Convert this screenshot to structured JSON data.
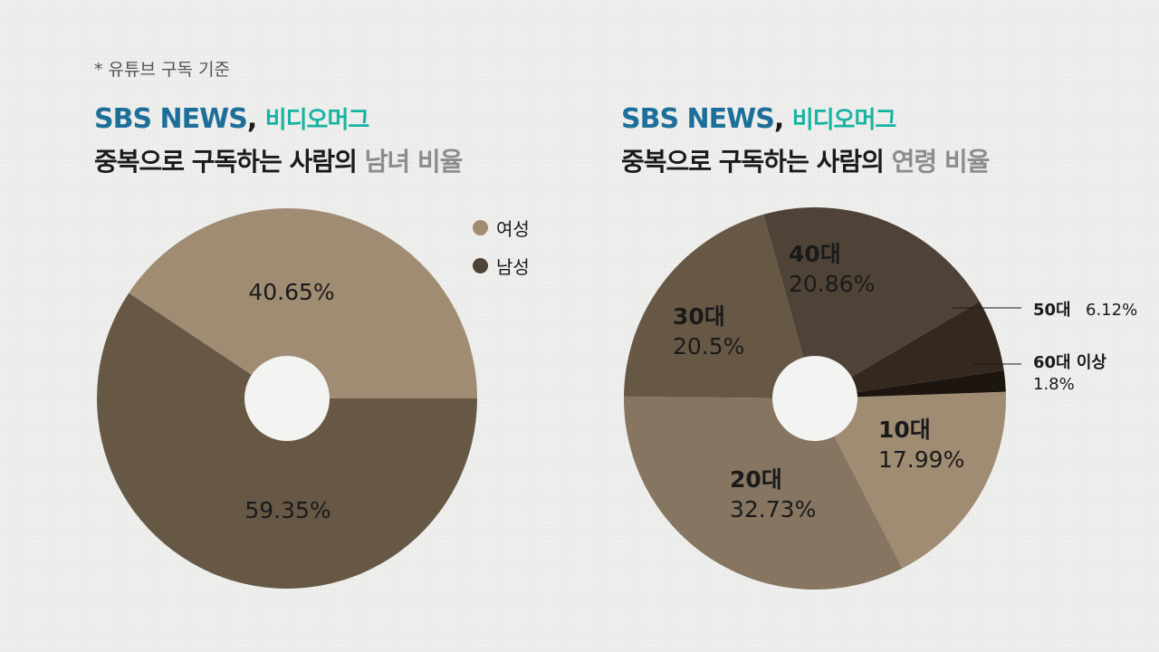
{
  "note": "* 유튜브 구독 기준",
  "left_header": {
    "brand_sbs": "SBS NEWS",
    "brand_comma": ",",
    "brand_vm": "비디오머그",
    "headline_main": "중복으로 구독하는 사람의 ",
    "headline_highlight": "남녀 비율"
  },
  "right_header": {
    "brand_sbs": "SBS NEWS",
    "brand_comma": ",",
    "brand_vm": "비디오머그",
    "headline_main": "중복으로 구독하는 사람의 ",
    "headline_highlight": "연령 비율"
  },
  "legend": [
    {
      "label": "여성",
      "color": "#a08c73"
    },
    {
      "label": "남성",
      "color": "#4e4336"
    }
  ],
  "colors": {
    "sbs_blue": "#1d6f99",
    "videomug_teal": "#17b3a3",
    "highlight_gray": "#8c8c8c",
    "center_hole": "#f3f3f2"
  },
  "chart_data": [
    {
      "type": "pie",
      "title": "중복으로 구독하는 사람의 남녀 비율",
      "categories": [
        "여성",
        "남성"
      ],
      "values": [
        40.65,
        59.35
      ],
      "labels": [
        "40.65%",
        "59.35%"
      ],
      "colors": [
        "#a08c73",
        "#675846"
      ],
      "legend": "top-right"
    },
    {
      "type": "pie",
      "title": "중복으로 구독하는 사람의 연령 비율",
      "categories": [
        "10대",
        "20대",
        "30대",
        "40대",
        "50대",
        "60대 이상"
      ],
      "values": [
        17.99,
        32.73,
        20.5,
        20.86,
        6.12,
        1.8
      ],
      "labels": [
        "17.99%",
        "32.73%",
        "20.5%",
        "20.86%",
        "6.12%",
        "1.8%"
      ],
      "colors": [
        "#a08c73",
        "#857561",
        "#675846",
        "#4e4336",
        "#35291f",
        "#1c1510"
      ]
    }
  ]
}
